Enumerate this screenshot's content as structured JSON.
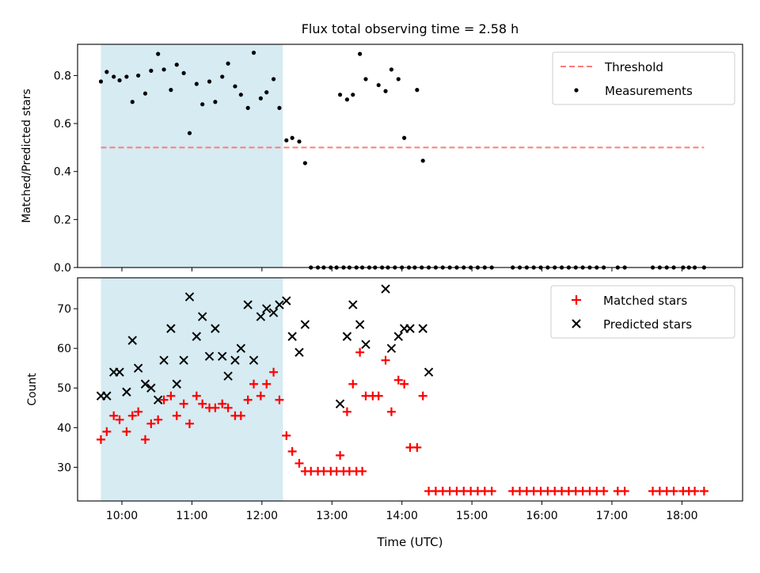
{
  "title": "Flux total observing time = 2.58 h",
  "chart_data": [
    {
      "type": "scatter",
      "ylabel": "Matched/Predicted stars",
      "xlabel": "",
      "xlim": [
        "09:22",
        "18:52"
      ],
      "ylim": [
        0,
        0.93
      ],
      "yticks": [
        0.0,
        0.2,
        0.4,
        0.6,
        0.8
      ],
      "ytick_labels": [
        "0.0",
        "0.2",
        "0.4",
        "0.6",
        "0.8"
      ],
      "xticks": [
        "10:00",
        "11:00",
        "12:00",
        "13:00",
        "14:00",
        "15:00",
        "16:00",
        "17:00",
        "18:00"
      ],
      "shaded_span": [
        "09:42",
        "12:18"
      ],
      "legend_position": "top-right",
      "threshold": {
        "name": "Threshold",
        "y": 0.5,
        "x_range": [
          "09:42",
          "18:19"
        ],
        "color": "#ff7a7a"
      },
      "series": [
        {
          "name": "Measurements",
          "color": "#000000",
          "points": [
            [
              "09:42",
              0.775
            ],
            [
              "09:47",
              0.815
            ],
            [
              "09:53",
              0.795
            ],
            [
              "09:58",
              0.78
            ],
            [
              "10:04",
              0.795
            ],
            [
              "10:09",
              0.69
            ],
            [
              "10:14",
              0.8
            ],
            [
              "10:20",
              0.725
            ],
            [
              "10:25",
              0.82
            ],
            [
              "10:31",
              0.89
            ],
            [
              "10:36",
              0.825
            ],
            [
              "10:42",
              0.74
            ],
            [
              "10:47",
              0.845
            ],
            [
              "10:53",
              0.81
            ],
            [
              "10:58",
              0.56
            ],
            [
              "11:04",
              0.765
            ],
            [
              "11:09",
              0.68
            ],
            [
              "11:15",
              0.775
            ],
            [
              "11:20",
              0.69
            ],
            [
              "11:26",
              0.795
            ],
            [
              "11:31",
              0.85
            ],
            [
              "11:37",
              0.755
            ],
            [
              "11:42",
              0.72
            ],
            [
              "11:48",
              0.665
            ],
            [
              "11:53",
              0.895
            ],
            [
              "11:59",
              0.705
            ],
            [
              "12:04",
              0.73
            ],
            [
              "12:10",
              0.785
            ],
            [
              "12:15",
              0.665
            ],
            [
              "12:21",
              0.53
            ],
            [
              "12:26",
              0.54
            ],
            [
              "12:32",
              0.525
            ],
            [
              "12:37",
              0.435
            ],
            [
              "13:07",
              0.72
            ],
            [
              "13:13",
              0.7
            ],
            [
              "13:18",
              0.72
            ],
            [
              "13:24",
              0.89
            ],
            [
              "13:29",
              0.785
            ],
            [
              "13:40",
              0.76
            ],
            [
              "13:46",
              0.735
            ],
            [
              "13:51",
              0.825
            ],
            [
              "13:57",
              0.785
            ],
            [
              "14:02",
              0.54
            ],
            [
              "14:13",
              0.74
            ],
            [
              "14:18",
              0.445
            ],
            [
              "12:42",
              0
            ],
            [
              "12:48",
              0
            ],
            [
              "12:53",
              0
            ],
            [
              "12:59",
              0
            ],
            [
              "13:04",
              0
            ],
            [
              "13:10",
              0
            ],
            [
              "13:15",
              0
            ],
            [
              "13:21",
              0
            ],
            [
              "13:26",
              0
            ],
            [
              "13:32",
              0
            ],
            [
              "13:37",
              0
            ],
            [
              "13:43",
              0
            ],
            [
              "13:48",
              0
            ],
            [
              "13:54",
              0
            ],
            [
              "14:00",
              0
            ],
            [
              "14:06",
              0
            ],
            [
              "14:11",
              0
            ],
            [
              "14:17",
              0
            ],
            [
              "14:23",
              0
            ],
            [
              "14:29",
              0
            ],
            [
              "14:35",
              0
            ],
            [
              "14:41",
              0
            ],
            [
              "14:47",
              0
            ],
            [
              "14:53",
              0
            ],
            [
              "14:59",
              0
            ],
            [
              "15:05",
              0
            ],
            [
              "15:11",
              0
            ],
            [
              "15:17",
              0
            ],
            [
              "15:35",
              0
            ],
            [
              "15:41",
              0
            ],
            [
              "15:47",
              0
            ],
            [
              "15:53",
              0
            ],
            [
              "15:59",
              0
            ],
            [
              "16:05",
              0
            ],
            [
              "16:11",
              0
            ],
            [
              "16:17",
              0
            ],
            [
              "16:23",
              0
            ],
            [
              "16:29",
              0
            ],
            [
              "16:35",
              0
            ],
            [
              "16:41",
              0
            ],
            [
              "16:47",
              0
            ],
            [
              "16:53",
              0
            ],
            [
              "17:05",
              0
            ],
            [
              "17:11",
              0
            ],
            [
              "17:35",
              0
            ],
            [
              "17:41",
              0
            ],
            [
              "17:47",
              0
            ],
            [
              "17:53",
              0
            ],
            [
              "18:01",
              0
            ],
            [
              "18:06",
              0
            ],
            [
              "18:11",
              0
            ],
            [
              "18:19",
              0
            ]
          ]
        }
      ]
    },
    {
      "type": "scatter",
      "ylabel": "Count",
      "xlabel": "Time (UTC)",
      "xlim": [
        "09:22",
        "18:52"
      ],
      "ylim": [
        21.5,
        77.8
      ],
      "yticks": [
        30,
        40,
        50,
        60,
        70
      ],
      "ytick_labels": [
        "30",
        "40",
        "50",
        "60",
        "70"
      ],
      "xticks": [
        "10:00",
        "11:00",
        "12:00",
        "13:00",
        "14:00",
        "15:00",
        "16:00",
        "17:00",
        "18:00"
      ],
      "xtick_labels": [
        "10:00",
        "11:00",
        "12:00",
        "13:00",
        "14:00",
        "15:00",
        "16:00",
        "17:00",
        "18:00"
      ],
      "shaded_span": [
        "09:42",
        "12:18"
      ],
      "legend_position": "top-right",
      "series": [
        {
          "name": "Matched stars",
          "color": "#ff0000",
          "marker": "+",
          "points": [
            [
              "09:42",
              37
            ],
            [
              "09:47",
              39
            ],
            [
              "09:53",
              43
            ],
            [
              "09:58",
              42
            ],
            [
              "10:04",
              39
            ],
            [
              "10:09",
              43
            ],
            [
              "10:14",
              44
            ],
            [
              "10:20",
              37
            ],
            [
              "10:25",
              41
            ],
            [
              "10:31",
              42
            ],
            [
              "10:36",
              47
            ],
            [
              "10:42",
              48
            ],
            [
              "10:47",
              43
            ],
            [
              "10:53",
              46
            ],
            [
              "10:58",
              41
            ],
            [
              "11:04",
              48
            ],
            [
              "11:09",
              46
            ],
            [
              "11:15",
              45
            ],
            [
              "11:20",
              45
            ],
            [
              "11:26",
              46
            ],
            [
              "11:31",
              45
            ],
            [
              "11:37",
              43
            ],
            [
              "11:42",
              43
            ],
            [
              "11:48",
              47
            ],
            [
              "11:53",
              51
            ],
            [
              "11:59",
              48
            ],
            [
              "12:04",
              51
            ],
            [
              "12:10",
              54
            ],
            [
              "12:15",
              47
            ],
            [
              "12:21",
              38
            ],
            [
              "12:26",
              34
            ],
            [
              "12:32",
              31
            ],
            [
              "12:37",
              29
            ],
            [
              "12:42",
              29
            ],
            [
              "12:48",
              29
            ],
            [
              "12:53",
              29
            ],
            [
              "12:59",
              29
            ],
            [
              "13:04",
              29
            ],
            [
              "13:10",
              29
            ],
            [
              "13:15",
              29
            ],
            [
              "13:21",
              29
            ],
            [
              "13:26",
              29
            ],
            [
              "13:07",
              33
            ],
            [
              "13:13",
              44
            ],
            [
              "13:18",
              51
            ],
            [
              "13:24",
              59
            ],
            [
              "13:29",
              48
            ],
            [
              "13:35",
              48
            ],
            [
              "13:40",
              48
            ],
            [
              "13:46",
              57
            ],
            [
              "13:51",
              44
            ],
            [
              "13:57",
              52
            ],
            [
              "14:02",
              51
            ],
            [
              "14:07",
              35
            ],
            [
              "14:13",
              35
            ],
            [
              "14:18",
              48
            ],
            [
              "14:23",
              24
            ],
            [
              "14:29",
              24
            ],
            [
              "14:35",
              24
            ],
            [
              "14:41",
              24
            ],
            [
              "14:47",
              24
            ],
            [
              "14:53",
              24
            ],
            [
              "14:59",
              24
            ],
            [
              "15:05",
              24
            ],
            [
              "15:11",
              24
            ],
            [
              "15:17",
              24
            ],
            [
              "15:35",
              24
            ],
            [
              "15:41",
              24
            ],
            [
              "15:47",
              24
            ],
            [
              "15:53",
              24
            ],
            [
              "15:59",
              24
            ],
            [
              "16:05",
              24
            ],
            [
              "16:11",
              24
            ],
            [
              "16:17",
              24
            ],
            [
              "16:23",
              24
            ],
            [
              "16:29",
              24
            ],
            [
              "16:35",
              24
            ],
            [
              "16:41",
              24
            ],
            [
              "16:47",
              24
            ],
            [
              "16:53",
              24
            ],
            [
              "17:05",
              24
            ],
            [
              "17:11",
              24
            ],
            [
              "17:35",
              24
            ],
            [
              "17:41",
              24
            ],
            [
              "17:47",
              24
            ],
            [
              "17:53",
              24
            ],
            [
              "18:01",
              24
            ],
            [
              "18:06",
              24
            ],
            [
              "18:11",
              24
            ],
            [
              "18:19",
              24
            ]
          ]
        },
        {
          "name": "Predicted stars",
          "color": "#000000",
          "marker": "x",
          "points": [
            [
              "09:42",
              48
            ],
            [
              "09:47",
              48
            ],
            [
              "09:53",
              54
            ],
            [
              "09:58",
              54
            ],
            [
              "10:04",
              49
            ],
            [
              "10:09",
              62
            ],
            [
              "10:14",
              55
            ],
            [
              "10:20",
              51
            ],
            [
              "10:25",
              50
            ],
            [
              "10:31",
              47
            ],
            [
              "10:36",
              57
            ],
            [
              "10:42",
              65
            ],
            [
              "10:47",
              51
            ],
            [
              "10:53",
              57
            ],
            [
              "10:58",
              73
            ],
            [
              "11:04",
              63
            ],
            [
              "11:09",
              68
            ],
            [
              "11:15",
              58
            ],
            [
              "11:20",
              65
            ],
            [
              "11:26",
              58
            ],
            [
              "11:31",
              53
            ],
            [
              "11:37",
              57
            ],
            [
              "11:42",
              60
            ],
            [
              "11:48",
              71
            ],
            [
              "11:53",
              57
            ],
            [
              "11:59",
              68
            ],
            [
              "12:04",
              70
            ],
            [
              "12:10",
              69
            ],
            [
              "12:15",
              71
            ],
            [
              "12:21",
              72
            ],
            [
              "12:26",
              63
            ],
            [
              "12:32",
              59
            ],
            [
              "12:37",
              66
            ],
            [
              "13:07",
              46
            ],
            [
              "13:13",
              63
            ],
            [
              "13:18",
              71
            ],
            [
              "13:24",
              66
            ],
            [
              "13:29",
              61
            ],
            [
              "13:46",
              75
            ],
            [
              "13:51",
              60
            ],
            [
              "13:57",
              63
            ],
            [
              "14:02",
              65
            ],
            [
              "14:07",
              65
            ],
            [
              "14:18",
              65
            ],
            [
              "14:23",
              54
            ]
          ]
        }
      ]
    }
  ]
}
